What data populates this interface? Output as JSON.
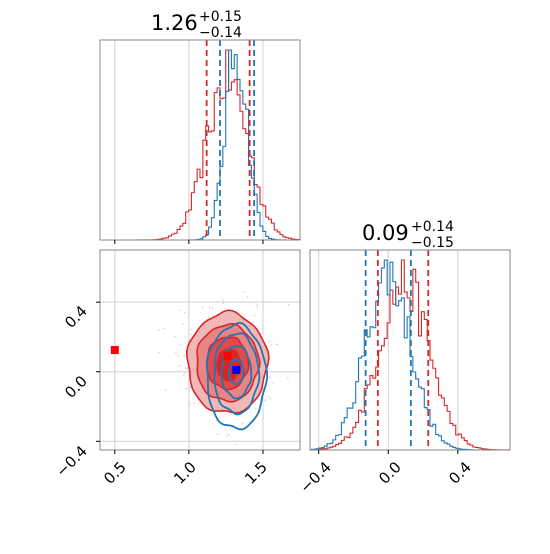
{
  "chart_data": {
    "type": "corner",
    "parameters": 2,
    "grid": true,
    "colors": {
      "red": "#d62728",
      "blue": "#1f77b4",
      "marker_red": "#ff0000",
      "marker_blue": "#0000ff"
    },
    "panels": [
      {
        "panel": "marginal-1",
        "type": "histogram",
        "title": {
          "value": "1.26",
          "sup": "+0.15",
          "sub": "−0.14"
        },
        "xlim": [
          0.4,
          1.75
        ],
        "quantiles_red": [
          1.12,
          1.41
        ],
        "quantiles_blue": [
          1.21,
          1.44
        ],
        "series": [
          {
            "name": "",
            "color": "#d62728",
            "center": 1.26,
            "spread": 0.14
          },
          {
            "name": "",
            "color": "#1f77b4",
            "center": 1.32,
            "spread": 0.075
          }
        ]
      },
      {
        "panel": "marginal-2",
        "type": "histogram",
        "title": {
          "value": "0.09",
          "sup": "+0.14",
          "sub": "−0.15"
        },
        "xlim": [
          -0.45,
          0.7
        ],
        "xticks": [
          "−0.4",
          "0.0",
          "0.4"
        ],
        "xtick_values": [
          -0.4,
          0.0,
          0.4
        ],
        "quantiles_red": [
          -0.06,
          0.23
        ],
        "quantiles_blue": [
          -0.13,
          0.13
        ],
        "series": [
          {
            "name": "",
            "color": "#d62728",
            "center": 0.09,
            "spread": 0.145
          },
          {
            "name": "",
            "color": "#1f77b4",
            "center": 0.0,
            "spread": 0.13
          }
        ]
      },
      {
        "panel": "joint",
        "type": "contour",
        "xlim": [
          0.4,
          1.75
        ],
        "ylim": [
          -0.45,
          0.7
        ],
        "xticks": [
          "0.5",
          "1.0",
          "1.5"
        ],
        "xtick_values": [
          0.5,
          1.0,
          1.5
        ],
        "yticks": [
          "−0.4",
          "0.0",
          "0.4"
        ],
        "ytick_values": [
          -0.4,
          0.0,
          0.4
        ],
        "red_contour_center": [
          1.26,
          0.05
        ],
        "blue_contour_center": [
          1.32,
          0.0
        ],
        "markers": [
          {
            "color": "#ff0000",
            "x": 0.5,
            "y": 0.125
          },
          {
            "color": "#ff0000",
            "x": 1.26,
            "y": 0.09
          },
          {
            "color": "#0000ff",
            "x": 1.32,
            "y": 0.01
          }
        ]
      }
    ]
  }
}
